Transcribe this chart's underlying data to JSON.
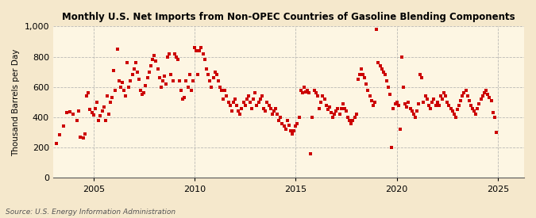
{
  "title": "Monthly U.S. Net Imports from Non-OPEC Countries of Gasoline Blending Components",
  "ylabel": "Thousand Barrels per Day",
  "source": "Source: U.S. Energy Information Administration",
  "background_color": "#f5e8cc",
  "plot_bg_color": "#fdf6e3",
  "marker_color": "#cc0000",
  "marker_size": 9,
  "ylim": [
    0,
    1000
  ],
  "yticks": [
    0,
    200,
    400,
    600,
    800,
    1000
  ],
  "xlim_start": 2003.0,
  "xlim_end": 2026.3,
  "xticks": [
    2005,
    2010,
    2015,
    2020,
    2025
  ],
  "data": [
    [
      2003.17,
      230
    ],
    [
      2003.33,
      285
    ],
    [
      2003.5,
      340
    ],
    [
      2003.67,
      430
    ],
    [
      2003.83,
      435
    ],
    [
      2004.0,
      420
    ],
    [
      2004.17,
      380
    ],
    [
      2004.25,
      440
    ],
    [
      2004.33,
      270
    ],
    [
      2004.5,
      265
    ],
    [
      2004.58,
      290
    ],
    [
      2004.67,
      540
    ],
    [
      2004.75,
      560
    ],
    [
      2004.83,
      450
    ],
    [
      2004.92,
      430
    ],
    [
      2005.0,
      415
    ],
    [
      2005.08,
      460
    ],
    [
      2005.17,
      500
    ],
    [
      2005.25,
      380
    ],
    [
      2005.33,
      410
    ],
    [
      2005.42,
      440
    ],
    [
      2005.5,
      470
    ],
    [
      2005.58,
      380
    ],
    [
      2005.67,
      540
    ],
    [
      2005.75,
      420
    ],
    [
      2005.83,
      500
    ],
    [
      2005.92,
      530
    ],
    [
      2006.0,
      710
    ],
    [
      2006.08,
      580
    ],
    [
      2006.17,
      850
    ],
    [
      2006.25,
      640
    ],
    [
      2006.33,
      600
    ],
    [
      2006.42,
      630
    ],
    [
      2006.5,
      580
    ],
    [
      2006.58,
      540
    ],
    [
      2006.67,
      760
    ],
    [
      2006.75,
      600
    ],
    [
      2006.83,
      640
    ],
    [
      2006.92,
      680
    ],
    [
      2007.0,
      720
    ],
    [
      2007.08,
      760
    ],
    [
      2007.17,
      700
    ],
    [
      2007.25,
      650
    ],
    [
      2007.33,
      580
    ],
    [
      2007.42,
      550
    ],
    [
      2007.5,
      560
    ],
    [
      2007.58,
      610
    ],
    [
      2007.67,
      660
    ],
    [
      2007.75,
      700
    ],
    [
      2007.83,
      740
    ],
    [
      2007.92,
      780
    ],
    [
      2008.0,
      810
    ],
    [
      2008.08,
      770
    ],
    [
      2008.17,
      720
    ],
    [
      2008.25,
      660
    ],
    [
      2008.33,
      600
    ],
    [
      2008.42,
      640
    ],
    [
      2008.5,
      670
    ],
    [
      2008.58,
      620
    ],
    [
      2008.67,
      800
    ],
    [
      2008.75,
      820
    ],
    [
      2008.83,
      680
    ],
    [
      2008.92,
      640
    ],
    [
      2009.0,
      820
    ],
    [
      2009.08,
      800
    ],
    [
      2009.17,
      780
    ],
    [
      2009.25,
      640
    ],
    [
      2009.33,
      580
    ],
    [
      2009.42,
      520
    ],
    [
      2009.5,
      530
    ],
    [
      2009.58,
      640
    ],
    [
      2009.67,
      600
    ],
    [
      2009.75,
      680
    ],
    [
      2009.83,
      580
    ],
    [
      2009.92,
      640
    ],
    [
      2010.0,
      860
    ],
    [
      2010.08,
      840
    ],
    [
      2010.17,
      680
    ],
    [
      2010.25,
      840
    ],
    [
      2010.33,
      860
    ],
    [
      2010.42,
      820
    ],
    [
      2010.5,
      780
    ],
    [
      2010.58,
      720
    ],
    [
      2010.67,
      680
    ],
    [
      2010.75,
      640
    ],
    [
      2010.83,
      600
    ],
    [
      2010.92,
      660
    ],
    [
      2011.0,
      700
    ],
    [
      2011.08,
      680
    ],
    [
      2011.17,
      640
    ],
    [
      2011.25,
      600
    ],
    [
      2011.33,
      580
    ],
    [
      2011.42,
      520
    ],
    [
      2011.5,
      580
    ],
    [
      2011.58,
      540
    ],
    [
      2011.67,
      500
    ],
    [
      2011.75,
      480
    ],
    [
      2011.83,
      440
    ],
    [
      2011.92,
      500
    ],
    [
      2012.0,
      520
    ],
    [
      2012.08,
      480
    ],
    [
      2012.17,
      440
    ],
    [
      2012.25,
      420
    ],
    [
      2012.33,
      460
    ],
    [
      2012.42,
      500
    ],
    [
      2012.5,
      480
    ],
    [
      2012.58,
      520
    ],
    [
      2012.67,
      540
    ],
    [
      2012.75,
      500
    ],
    [
      2012.83,
      460
    ],
    [
      2012.92,
      520
    ],
    [
      2013.0,
      560
    ],
    [
      2013.08,
      480
    ],
    [
      2013.17,
      500
    ],
    [
      2013.25,
      520
    ],
    [
      2013.33,
      540
    ],
    [
      2013.42,
      460
    ],
    [
      2013.5,
      440
    ],
    [
      2013.58,
      500
    ],
    [
      2013.67,
      480
    ],
    [
      2013.75,
      460
    ],
    [
      2013.83,
      420
    ],
    [
      2013.92,
      440
    ],
    [
      2014.0,
      460
    ],
    [
      2014.08,
      420
    ],
    [
      2014.17,
      380
    ],
    [
      2014.25,
      400
    ],
    [
      2014.33,
      360
    ],
    [
      2014.42,
      340
    ],
    [
      2014.5,
      320
    ],
    [
      2014.58,
      380
    ],
    [
      2014.67,
      350
    ],
    [
      2014.75,
      310
    ],
    [
      2014.83,
      290
    ],
    [
      2014.92,
      310
    ],
    [
      2015.0,
      340
    ],
    [
      2015.08,
      360
    ],
    [
      2015.17,
      400
    ],
    [
      2015.25,
      580
    ],
    [
      2015.33,
      560
    ],
    [
      2015.42,
      600
    ],
    [
      2015.5,
      570
    ],
    [
      2015.58,
      580
    ],
    [
      2015.67,
      560
    ],
    [
      2015.75,
      160
    ],
    [
      2015.83,
      400
    ],
    [
      2015.92,
      580
    ],
    [
      2016.0,
      560
    ],
    [
      2016.08,
      540
    ],
    [
      2016.17,
      460
    ],
    [
      2016.25,
      500
    ],
    [
      2016.33,
      540
    ],
    [
      2016.42,
      520
    ],
    [
      2016.5,
      480
    ],
    [
      2016.58,
      450
    ],
    [
      2016.67,
      470
    ],
    [
      2016.75,
      430
    ],
    [
      2016.83,
      400
    ],
    [
      2016.92,
      420
    ],
    [
      2017.0,
      440
    ],
    [
      2017.08,
      460
    ],
    [
      2017.17,
      420
    ],
    [
      2017.25,
      460
    ],
    [
      2017.33,
      490
    ],
    [
      2017.42,
      460
    ],
    [
      2017.5,
      440
    ],
    [
      2017.58,
      400
    ],
    [
      2017.67,
      380
    ],
    [
      2017.75,
      360
    ],
    [
      2017.83,
      380
    ],
    [
      2017.92,
      400
    ],
    [
      2018.0,
      420
    ],
    [
      2018.08,
      650
    ],
    [
      2018.17,
      680
    ],
    [
      2018.25,
      720
    ],
    [
      2018.33,
      680
    ],
    [
      2018.42,
      660
    ],
    [
      2018.5,
      620
    ],
    [
      2018.58,
      580
    ],
    [
      2018.67,
      540
    ],
    [
      2018.75,
      510
    ],
    [
      2018.83,
      480
    ],
    [
      2018.92,
      500
    ],
    [
      2019.0,
      980
    ],
    [
      2019.08,
      760
    ],
    [
      2019.17,
      740
    ],
    [
      2019.25,
      720
    ],
    [
      2019.33,
      700
    ],
    [
      2019.42,
      680
    ],
    [
      2019.5,
      640
    ],
    [
      2019.58,
      600
    ],
    [
      2019.67,
      550
    ],
    [
      2019.75,
      200
    ],
    [
      2019.83,
      460
    ],
    [
      2019.92,
      490
    ],
    [
      2020.0,
      500
    ],
    [
      2020.08,
      480
    ],
    [
      2020.17,
      320
    ],
    [
      2020.25,
      800
    ],
    [
      2020.33,
      600
    ],
    [
      2020.42,
      490
    ],
    [
      2020.5,
      470
    ],
    [
      2020.58,
      500
    ],
    [
      2020.67,
      460
    ],
    [
      2020.75,
      440
    ],
    [
      2020.83,
      420
    ],
    [
      2020.92,
      400
    ],
    [
      2021.0,
      440
    ],
    [
      2021.08,
      490
    ],
    [
      2021.17,
      680
    ],
    [
      2021.25,
      660
    ],
    [
      2021.33,
      500
    ],
    [
      2021.42,
      540
    ],
    [
      2021.5,
      520
    ],
    [
      2021.58,
      480
    ],
    [
      2021.67,
      460
    ],
    [
      2021.75,
      500
    ],
    [
      2021.83,
      520
    ],
    [
      2021.92,
      480
    ],
    [
      2022.0,
      500
    ],
    [
      2022.08,
      480
    ],
    [
      2022.17,
      540
    ],
    [
      2022.25,
      520
    ],
    [
      2022.33,
      560
    ],
    [
      2022.42,
      540
    ],
    [
      2022.5,
      500
    ],
    [
      2022.58,
      480
    ],
    [
      2022.67,
      460
    ],
    [
      2022.75,
      440
    ],
    [
      2022.83,
      420
    ],
    [
      2022.92,
      400
    ],
    [
      2023.0,
      450
    ],
    [
      2023.08,
      480
    ],
    [
      2023.17,
      510
    ],
    [
      2023.25,
      540
    ],
    [
      2023.33,
      560
    ],
    [
      2023.42,
      580
    ],
    [
      2023.5,
      540
    ],
    [
      2023.58,
      510
    ],
    [
      2023.67,
      480
    ],
    [
      2023.75,
      460
    ],
    [
      2023.83,
      440
    ],
    [
      2023.92,
      420
    ],
    [
      2024.0,
      460
    ],
    [
      2024.08,
      490
    ],
    [
      2024.17,
      520
    ],
    [
      2024.25,
      540
    ],
    [
      2024.33,
      560
    ],
    [
      2024.42,
      580
    ],
    [
      2024.5,
      550
    ],
    [
      2024.58,
      530
    ],
    [
      2024.67,
      510
    ],
    [
      2024.75,
      430
    ],
    [
      2024.83,
      400
    ],
    [
      2024.92,
      300
    ]
  ]
}
